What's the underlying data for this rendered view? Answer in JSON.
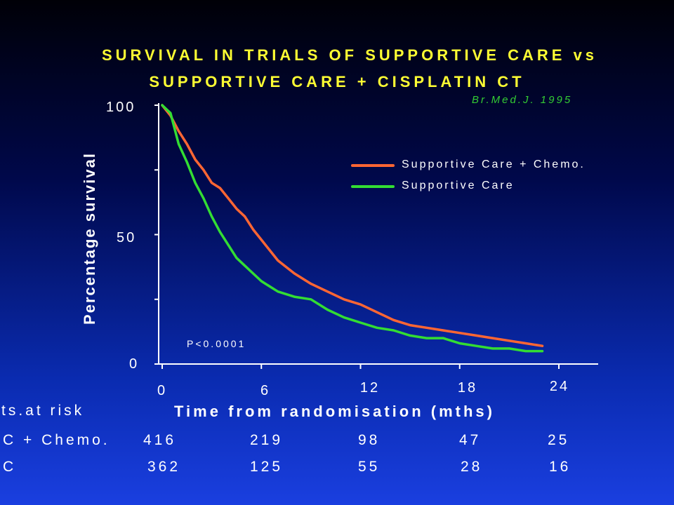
{
  "chart_data": {
    "type": "line",
    "title": "SURVIVAL IN TRIALS OF SUPPORTIVE CARE vs",
    "subtitle": "SUPPORTIVE CARE + CISPLATIN CT",
    "source": "Br.Med.J. 1995",
    "xlabel": "Time from randomisation (mths)",
    "ylabel": "Percentage survival",
    "xlim": [
      0,
      24
    ],
    "ylim": [
      0,
      100
    ],
    "xticks": [
      "0",
      "6",
      "12",
      "18",
      "24"
    ],
    "yticks": [
      "100",
      "50",
      "0"
    ],
    "legend_position": "top-right",
    "annotation": "P<0.0001",
    "series": [
      {
        "name": "Supportive Care + Chemo.",
        "color": "#ff6633",
        "x": [
          0,
          0.5,
          1,
          1.5,
          2,
          2.5,
          3,
          3.5,
          4,
          4.5,
          5,
          5.5,
          6,
          7,
          8,
          9,
          10,
          11,
          12,
          13,
          14,
          15,
          16,
          17,
          18,
          19,
          20,
          21,
          22,
          23
        ],
        "y": [
          100,
          96,
          90,
          85,
          79,
          75,
          70,
          68,
          64,
          60,
          57,
          52,
          48,
          40,
          35,
          31,
          28,
          25,
          23,
          20,
          17,
          15,
          14,
          13,
          12,
          11,
          10,
          9,
          8,
          7
        ]
      },
      {
        "name": "Supportive Care",
        "color": "#33dd33",
        "x": [
          0,
          0.5,
          1,
          1.5,
          2,
          2.5,
          3,
          3.5,
          4,
          4.5,
          5,
          5.5,
          6,
          7,
          8,
          9,
          10,
          11,
          12,
          13,
          14,
          15,
          16,
          17,
          17.5,
          18,
          19,
          20,
          21,
          22,
          23
        ],
        "y": [
          100,
          97,
          85,
          78,
          70,
          64,
          57,
          51,
          46,
          41,
          38,
          35,
          32,
          28,
          26,
          25,
          21,
          18,
          16,
          14,
          13,
          11,
          10,
          10,
          9,
          8,
          7,
          6,
          6,
          5,
          5
        ]
      }
    ]
  },
  "risk_table": {
    "header": "Pts.at risk",
    "rows": [
      {
        "label": "SC + Chemo.",
        "values": [
          "416",
          "219",
          "98",
          "47",
          "25"
        ]
      },
      {
        "label": "SC",
        "values": [
          "362",
          "125",
          "55",
          "28",
          "16"
        ]
      }
    ]
  }
}
